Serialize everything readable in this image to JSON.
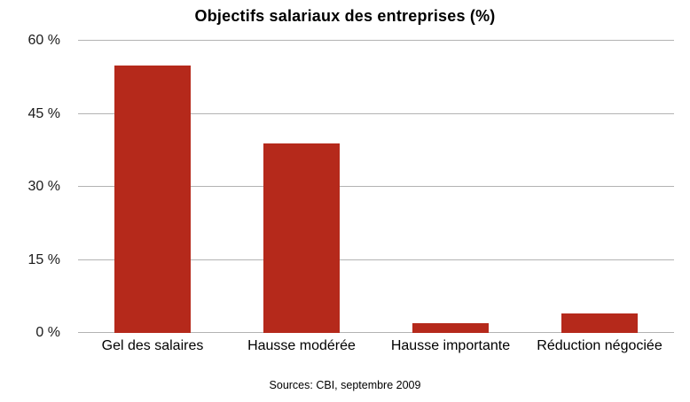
{
  "title": "Objectifs salariaux des entreprises (%)",
  "source": "Sources: CBI, septembre 2009",
  "chart_data": {
    "type": "bar",
    "title": "Objectifs salariaux des entreprises (%)",
    "categories": [
      "Gel des salaires",
      "Hausse modérée",
      "Hausse importante",
      "Réduction négociée"
    ],
    "values": [
      55,
      39,
      2,
      4
    ],
    "xlabel": "",
    "ylabel": "",
    "ylim": [
      0,
      60
    ],
    "yticks": [
      0,
      15,
      30,
      45,
      60
    ],
    "ytick_labels": [
      "0 %",
      "15 %",
      "30 %",
      "45 %",
      "60 %"
    ],
    "bar_color": "#b5291b",
    "gridline_color": "#b3b3b3",
    "grid": true,
    "legend": false,
    "source": "Sources: CBI, septembre 2009"
  }
}
